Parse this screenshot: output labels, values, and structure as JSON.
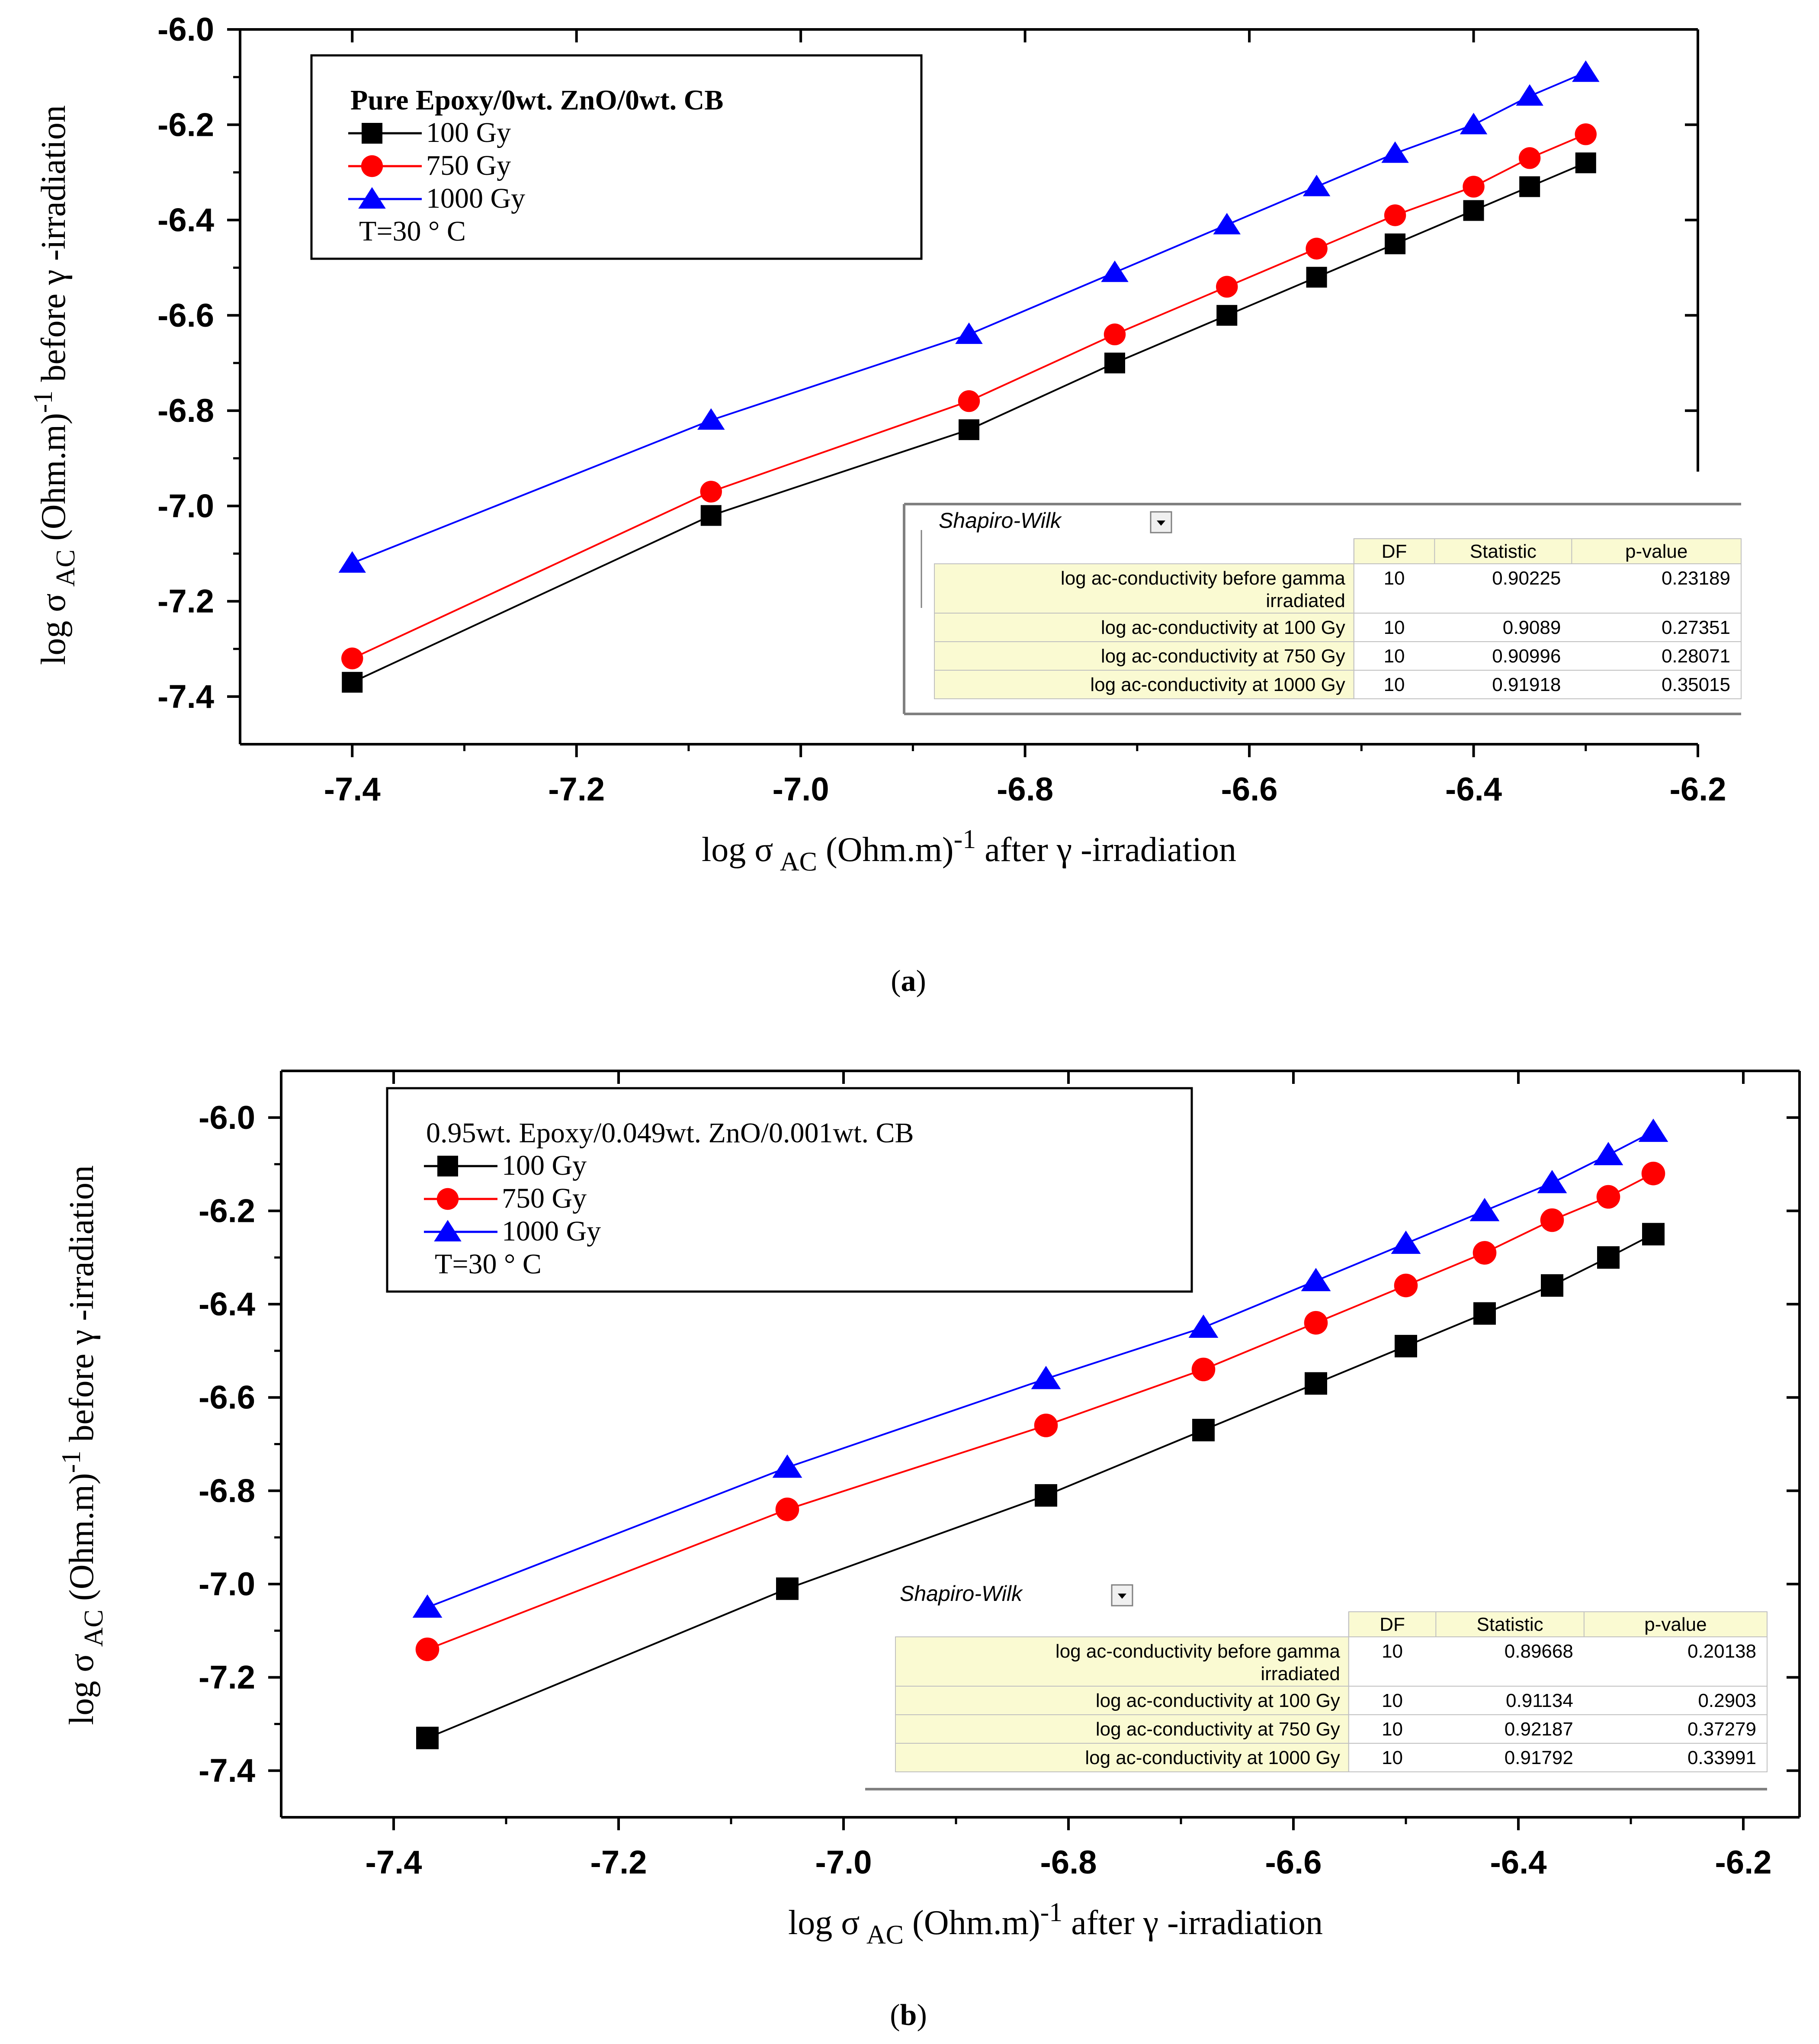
{
  "colors": {
    "s100": "#000000",
    "s750": "#ff0000",
    "s1000": "#0000ff",
    "header_bg": "#fafad2"
  },
  "chart_data": [
    {
      "panel": "a",
      "type": "line",
      "caption_letter": "a",
      "xlabel": {
        "prefix": "log σ",
        "sub": "AC",
        "unit": " (Ohm.m)",
        "sup": "-1",
        "suffix": " after γ -irradiation"
      },
      "ylabel": {
        "prefix": "log σ",
        "sub": "AC",
        "unit": " (Ohm.m)",
        "sup": "-1",
        "suffix": " before γ -irradiation"
      },
      "xlim": [
        -7.5,
        -6.2
      ],
      "ylim": [
        -7.5,
        -6.0
      ],
      "xticks": [
        -7.4,
        -7.2,
        -7.0,
        -6.8,
        -6.6,
        -6.4,
        -6.2
      ],
      "xtick_labels": [
        "-7.4",
        "-7.2",
        "-7.0",
        "-6.8",
        "-6.6",
        "-6.4",
        "-6.2"
      ],
      "yticks": [
        -6.0,
        -6.2,
        -6.4,
        -6.6,
        -6.8,
        -7.0,
        -7.2,
        -7.4
      ],
      "ytick_labels": [
        "-6.0",
        "-6.2",
        "-6.4",
        "-6.6",
        "-6.8",
        "-7.0",
        "-7.2",
        "-7.4"
      ],
      "legend": {
        "title": "Pure Epoxy/0wt. ZnO/0wt. CB",
        "items": [
          "100 Gy",
          "750 Gy",
          "1000 Gy"
        ],
        "note": "T=30 ° C"
      },
      "series": [
        {
          "name": "100 Gy",
          "marker": "square",
          "x": [
            -7.4,
            -7.08,
            -6.85,
            -6.72,
            -6.62,
            -6.54,
            -6.47,
            -6.4,
            -6.35,
            -6.3
          ],
          "y": [
            -7.37,
            -7.02,
            -6.84,
            -6.7,
            -6.6,
            -6.52,
            -6.45,
            -6.38,
            -6.33,
            -6.28
          ]
        },
        {
          "name": "750 Gy",
          "marker": "circle",
          "x": [
            -7.4,
            -7.08,
            -6.85,
            -6.72,
            -6.62,
            -6.54,
            -6.47,
            -6.4,
            -6.35,
            -6.3
          ],
          "y": [
            -7.32,
            -6.97,
            -6.78,
            -6.64,
            -6.54,
            -6.46,
            -6.39,
            -6.33,
            -6.27,
            -6.22
          ]
        },
        {
          "name": "1000 Gy",
          "marker": "triangle",
          "x": [
            -7.4,
            -7.08,
            -6.85,
            -6.72,
            -6.62,
            -6.54,
            -6.47,
            -6.4,
            -6.35,
            -6.3
          ],
          "y": [
            -7.12,
            -6.82,
            -6.64,
            -6.51,
            -6.41,
            -6.33,
            -6.26,
            -6.2,
            -6.14,
            -6.09
          ]
        }
      ],
      "table": {
        "title": "Shapiro-Wilk",
        "headers": [
          "DF",
          "Statistic",
          "p-value"
        ],
        "rows": [
          {
            "label": [
              "log ac-conductivity before gamma",
              "irradiated"
            ],
            "df": "10",
            "stat": "0.90225",
            "p": "0.23189"
          },
          {
            "label": [
              "log ac-conductivity  at 100 Gy"
            ],
            "df": "10",
            "stat": "0.9089",
            "p": "0.27351"
          },
          {
            "label": [
              "log ac-conductivity  at 750 Gy"
            ],
            "df": "10",
            "stat": "0.90996",
            "p": "0.28071"
          },
          {
            "label": [
              "log ac-conductivity  at 1000 Gy"
            ],
            "df": "10",
            "stat": "0.91918",
            "p": "0.35015"
          }
        ]
      }
    },
    {
      "panel": "b",
      "type": "line",
      "caption_letter": "b",
      "xlabel": {
        "prefix": "log σ",
        "sub": "AC",
        "unit": " (Ohm.m)",
        "sup": "-1",
        "suffix": " after  γ -irradiation"
      },
      "ylabel": {
        "prefix": "log σ",
        "sub": "AC",
        "unit": " (Ohm.m)",
        "sup": "-1",
        "suffix": " before γ -irradiation"
      },
      "xlim": [
        -7.5,
        -6.15
      ],
      "ylim": [
        -7.5,
        -5.9
      ],
      "xticks": [
        -7.4,
        -7.2,
        -7.0,
        -6.8,
        -6.6,
        -6.4,
        -6.2
      ],
      "xtick_labels": [
        "-7.4",
        "-7.2",
        "-7.0",
        "-6.8",
        "-6.6",
        "-6.4",
        "-6.2"
      ],
      "yticks": [
        -6.0,
        -6.2,
        -6.4,
        -6.6,
        -6.8,
        -7.0,
        -7.2,
        -7.4
      ],
      "ytick_labels": [
        "-6.0",
        "-6.2",
        "-6.4",
        "-6.6",
        "-6.8",
        "-7.0",
        "-7.2",
        "-7.4"
      ],
      "legend": {
        "title": "0.95wt. Epoxy/0.049wt. ZnO/0.001wt. CB",
        "items": [
          "100 Gy",
          "750 Gy",
          "1000 Gy"
        ],
        "note": "T=30 ° C"
      },
      "series": [
        {
          "name": "100 Gy",
          "marker": "square",
          "x": [
            -7.37,
            -7.05,
            -6.82,
            -6.68,
            -6.58,
            -6.5,
            -6.43,
            -6.37,
            -6.32,
            -6.28
          ],
          "y": [
            -7.33,
            -7.01,
            -6.81,
            -6.67,
            -6.57,
            -6.49,
            -6.42,
            -6.36,
            -6.3,
            -6.25
          ]
        },
        {
          "name": "750 Gy",
          "marker": "circle",
          "x": [
            -7.37,
            -7.05,
            -6.82,
            -6.68,
            -6.58,
            -6.5,
            -6.43,
            -6.37,
            -6.32,
            -6.28
          ],
          "y": [
            -7.14,
            -6.84,
            -6.66,
            -6.54,
            -6.44,
            -6.36,
            -6.29,
            -6.22,
            -6.17,
            -6.12
          ]
        },
        {
          "name": "1000 Gy",
          "marker": "triangle",
          "x": [
            -7.37,
            -7.05,
            -6.82,
            -6.68,
            -6.58,
            -6.5,
            -6.43,
            -6.37,
            -6.32,
            -6.28
          ],
          "y": [
            -7.05,
            -6.75,
            -6.56,
            -6.45,
            -6.35,
            -6.27,
            -6.2,
            -6.14,
            -6.08,
            -6.03
          ]
        }
      ],
      "table": {
        "title": "Shapiro-Wilk",
        "headers": [
          "DF",
          "Statistic",
          "p-value"
        ],
        "rows": [
          {
            "label": [
              "log ac-conductivity before gamma",
              "irradiated"
            ],
            "df": "10",
            "stat": "0.89668",
            "p": "0.20138"
          },
          {
            "label": [
              "log ac-conductivity  at 100 Gy"
            ],
            "df": "10",
            "stat": "0.91134",
            "p": "0.2903"
          },
          {
            "label": [
              "log ac-conductivity  at 750 Gy"
            ],
            "df": "10",
            "stat": "0.92187",
            "p": "0.37279"
          },
          {
            "label": [
              "log ac-conductivity  at 1000 Gy"
            ],
            "df": "10",
            "stat": "0.91792",
            "p": "0.33991"
          }
        ]
      }
    }
  ]
}
